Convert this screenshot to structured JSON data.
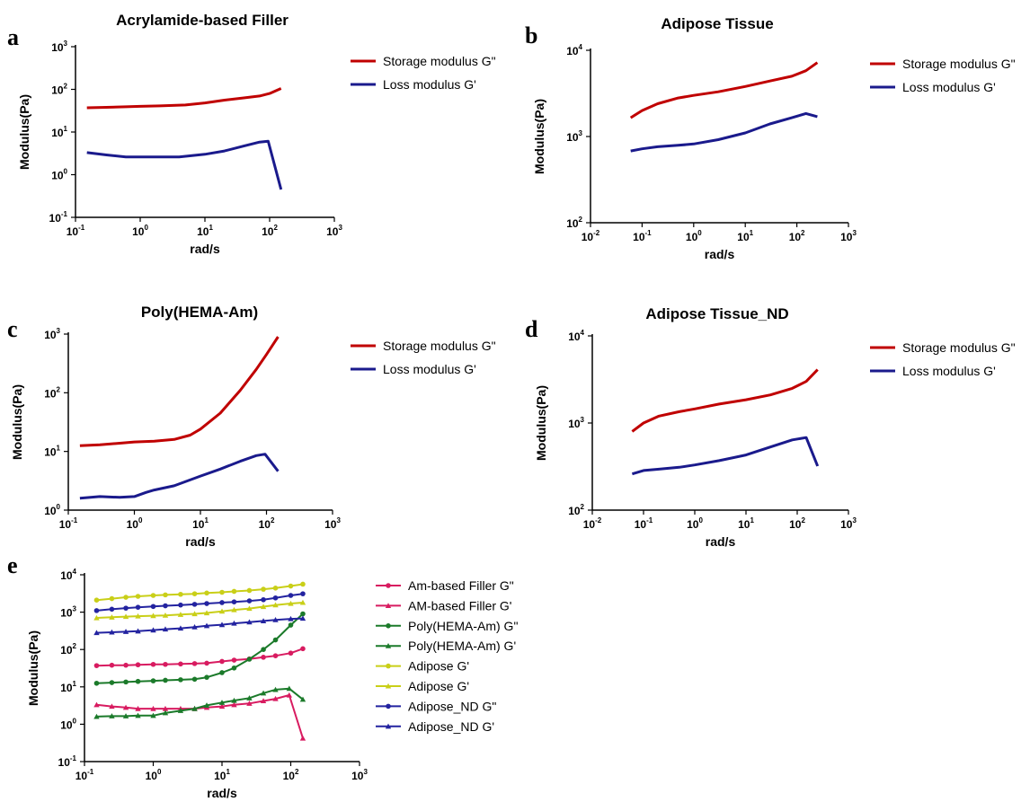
{
  "colors": {
    "storage": "#c00000",
    "loss": "#1a1a8c",
    "am_filler": "#d81b60",
    "poly": "#1b7a2a",
    "adipose": "#c9cf18",
    "adipose_nd": "#2323a0"
  },
  "chart_data": [
    {
      "id": "a",
      "panel_label": "a",
      "type": "line",
      "title": "Acrylamide-based Filler",
      "xlabel": "rad/s",
      "ylabel": "Modulus(Pa)",
      "x_scale": "log",
      "y_scale": "log",
      "xlim_exp": [
        -1,
        3
      ],
      "ylim_exp": [
        -1,
        3
      ],
      "series": [
        {
          "name": "Storage modulus G\"",
          "color_key": "storage",
          "x": [
            0.15,
            0.3,
            0.6,
            1,
            2,
            5,
            10,
            20,
            40,
            70,
            100,
            150
          ],
          "y": [
            37,
            38,
            39,
            40,
            41,
            43,
            48,
            56,
            63,
            70,
            80,
            105
          ]
        },
        {
          "name": "Loss modulus G'",
          "color_key": "loss",
          "x": [
            0.15,
            0.3,
            0.6,
            1,
            2,
            4,
            10,
            20,
            40,
            70,
            95,
            150
          ],
          "y": [
            3.3,
            2.9,
            2.6,
            2.6,
            2.6,
            2.6,
            3.0,
            3.6,
            4.7,
            5.8,
            6.1,
            0.45
          ]
        }
      ]
    },
    {
      "id": "b",
      "panel_label": "b",
      "type": "line",
      "title": "Adipose Tissue",
      "xlabel": "rad/s",
      "ylabel": "Modulus(Pa)",
      "x_scale": "log",
      "y_scale": "log",
      "xlim_exp": [
        -2,
        3
      ],
      "ylim_exp": [
        2,
        4
      ],
      "series": [
        {
          "name": "Storage modulus G\"",
          "color_key": "storage",
          "x": [
            0.06,
            0.1,
            0.2,
            0.5,
            1,
            3,
            10,
            30,
            80,
            150,
            250
          ],
          "y": [
            1650,
            2000,
            2400,
            2800,
            3000,
            3300,
            3800,
            4400,
            5000,
            5800,
            7200
          ]
        },
        {
          "name": "Loss modulus G'",
          "color_key": "loss",
          "x": [
            0.06,
            0.1,
            0.2,
            0.5,
            1,
            3,
            10,
            30,
            80,
            150,
            250
          ],
          "y": [
            680,
            720,
            760,
            790,
            820,
            920,
            1100,
            1400,
            1650,
            1850,
            1700
          ]
        }
      ]
    },
    {
      "id": "c",
      "panel_label": "c",
      "type": "line",
      "title": "Poly(HEMA-Am)",
      "xlabel": "rad/s",
      "ylabel": "Modulus(Pa)",
      "x_scale": "log",
      "y_scale": "log",
      "xlim_exp": [
        -1,
        3
      ],
      "ylim_exp": [
        0,
        3
      ],
      "series": [
        {
          "name": "Storage modulus G\"",
          "color_key": "storage",
          "x": [
            0.15,
            0.3,
            0.6,
            1,
            2,
            4,
            7,
            10,
            20,
            40,
            70,
            100,
            150
          ],
          "y": [
            12.5,
            13,
            13.8,
            14.5,
            15,
            16,
            19,
            24,
            45,
            110,
            250,
            450,
            900
          ]
        },
        {
          "name": "Loss modulus G'",
          "color_key": "loss",
          "x": [
            0.15,
            0.3,
            0.6,
            1,
            1.5,
            2,
            4,
            10,
            20,
            40,
            70,
            95,
            150
          ],
          "y": [
            1.6,
            1.7,
            1.65,
            1.7,
            2.0,
            2.2,
            2.6,
            3.8,
            5.0,
            6.8,
            8.5,
            9.0,
            4.6
          ]
        }
      ]
    },
    {
      "id": "d",
      "panel_label": "d",
      "type": "line",
      "title": "Adipose Tissue_ND",
      "xlabel": "rad/s",
      "ylabel": "Modulus(Pa)",
      "x_scale": "log",
      "y_scale": "log",
      "xlim_exp": [
        -2,
        3
      ],
      "ylim_exp": [
        2,
        4
      ],
      "series": [
        {
          "name": "Storage modulus G\"",
          "color_key": "storage",
          "x": [
            0.06,
            0.1,
            0.2,
            0.5,
            1,
            3,
            10,
            30,
            80,
            150,
            250
          ],
          "y": [
            800,
            1000,
            1200,
            1350,
            1450,
            1650,
            1850,
            2100,
            2500,
            3000,
            4100
          ]
        },
        {
          "name": "Loss modulus G'",
          "color_key": "loss",
          "x": [
            0.06,
            0.1,
            0.2,
            0.5,
            1,
            3,
            10,
            30,
            80,
            150,
            250
          ],
          "y": [
            260,
            285,
            295,
            310,
            330,
            370,
            430,
            530,
            640,
            680,
            320
          ]
        }
      ]
    },
    {
      "id": "e",
      "panel_label": "e",
      "type": "line",
      "title": "",
      "xlabel": "rad/s",
      "ylabel": "Modulus(Pa)",
      "x_scale": "log",
      "y_scale": "log",
      "xlim_exp": [
        -1,
        3
      ],
      "ylim_exp": [
        -1,
        4
      ],
      "markers": true,
      "series": [
        {
          "name": "Am-based Filler G\"",
          "color_key": "am_filler",
          "marker": "circle",
          "x": [
            0.15,
            0.25,
            0.4,
            0.6,
            1,
            1.5,
            2.5,
            4,
            6,
            10,
            15,
            25,
            40,
            60,
            100,
            150
          ],
          "y": [
            37,
            38,
            38,
            39,
            40,
            40,
            41,
            42,
            43,
            48,
            52,
            56,
            62,
            68,
            80,
            105
          ]
        },
        {
          "name": "AM-based Filler G'",
          "color_key": "am_filler",
          "marker": "triangle",
          "x": [
            0.15,
            0.25,
            0.4,
            0.6,
            1,
            1.5,
            2.5,
            4,
            6,
            10,
            15,
            25,
            40,
            60,
            95,
            150
          ],
          "y": [
            3.3,
            3.0,
            2.8,
            2.6,
            2.6,
            2.6,
            2.6,
            2.6,
            2.8,
            3.0,
            3.3,
            3.6,
            4.2,
            4.8,
            6.0,
            0.42
          ]
        },
        {
          "name": "Poly(HEMA-Am) G\"",
          "color_key": "poly",
          "marker": "circle",
          "x": [
            0.15,
            0.25,
            0.4,
            0.6,
            1,
            1.5,
            2.5,
            4,
            6,
            10,
            15,
            25,
            40,
            60,
            100,
            150
          ],
          "y": [
            12.5,
            13,
            13.5,
            14,
            14.5,
            15,
            15.5,
            16,
            18,
            24,
            32,
            55,
            100,
            180,
            450,
            900
          ]
        },
        {
          "name": "Poly(HEMA-Am) G'",
          "color_key": "poly",
          "marker": "triangle",
          "x": [
            0.15,
            0.25,
            0.4,
            0.6,
            1,
            1.5,
            2.5,
            4,
            6,
            10,
            15,
            25,
            40,
            60,
            95,
            150
          ],
          "y": [
            1.6,
            1.65,
            1.65,
            1.7,
            1.7,
            2.0,
            2.3,
            2.6,
            3.2,
            3.8,
            4.3,
            5.0,
            6.8,
            8.4,
            9.0,
            4.6
          ]
        },
        {
          "name": "Adipose G'",
          "color_key": "adipose",
          "marker": "circle",
          "x": [
            0.15,
            0.25,
            0.4,
            0.6,
            1,
            1.5,
            2.5,
            4,
            6,
            10,
            15,
            25,
            40,
            60,
            100,
            150
          ],
          "y": [
            2100,
            2300,
            2500,
            2650,
            2800,
            2900,
            3000,
            3100,
            3250,
            3400,
            3600,
            3800,
            4100,
            4400,
            5000,
            5600
          ]
        },
        {
          "name": "Adipose G'",
          "color_key": "adipose",
          "marker": "triangle",
          "x": [
            0.15,
            0.25,
            0.4,
            0.6,
            1,
            1.5,
            2.5,
            4,
            6,
            10,
            15,
            25,
            40,
            60,
            100,
            150
          ],
          "y": [
            700,
            730,
            760,
            780,
            800,
            820,
            860,
            900,
            950,
            1050,
            1150,
            1250,
            1400,
            1550,
            1700,
            1800
          ]
        },
        {
          "name": "Adipose_ND G\"",
          "color_key": "adipose_nd",
          "marker": "circle",
          "x": [
            0.15,
            0.25,
            0.4,
            0.6,
            1,
            1.5,
            2.5,
            4,
            6,
            10,
            15,
            25,
            40,
            60,
            100,
            150
          ],
          "y": [
            1100,
            1200,
            1280,
            1350,
            1420,
            1480,
            1550,
            1620,
            1700,
            1800,
            1880,
            2000,
            2150,
            2400,
            2800,
            3100
          ]
        },
        {
          "name": "Adipose_ND  G'",
          "color_key": "adipose_nd",
          "marker": "triangle",
          "x": [
            0.15,
            0.25,
            0.4,
            0.6,
            1,
            1.5,
            2.5,
            4,
            6,
            10,
            15,
            25,
            40,
            60,
            100,
            150
          ],
          "y": [
            280,
            290,
            300,
            310,
            330,
            350,
            370,
            400,
            430,
            460,
            500,
            540,
            580,
            620,
            660,
            680
          ]
        }
      ]
    }
  ]
}
